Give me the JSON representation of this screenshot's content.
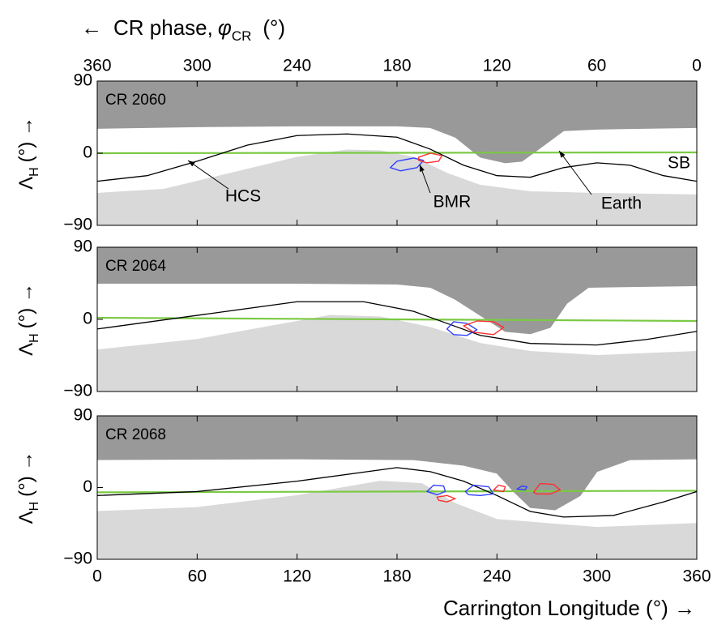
{
  "chart_data": [
    {
      "type": "map",
      "panel_label": "CR 2060",
      "x2label": {
        "arrow": "←",
        "text": "CR phase,",
        "symbol": "φ",
        "sub": "CR",
        "unit": "(°)"
      },
      "x2lim": [
        360,
        0
      ],
      "x2ticks": [
        360,
        300,
        240,
        180,
        120,
        60,
        0
      ],
      "ylabel": {
        "symbol": "Λ",
        "sub": "H",
        "rest": "(°) →"
      },
      "xlim": [
        0,
        360
      ],
      "ylim": [
        -90,
        90
      ],
      "yticks": [
        {
          "value": -90,
          "label": "−90"
        },
        0,
        90
      ],
      "series": [
        {
          "color": "#999999",
          "fill": "above",
          "x": [
            0,
            60,
            120,
            180,
            200,
            215,
            230,
            245,
            255,
            265,
            280,
            300,
            360
          ],
          "values": [
            31,
            33,
            34,
            34,
            32,
            20,
            -5,
            -12,
            -10,
            5,
            28,
            30,
            32
          ]
        },
        {
          "color": "#d9d9d9",
          "fill": "below",
          "x": [
            0,
            40,
            80,
            120,
            150,
            170,
            190,
            210,
            230,
            260,
            300,
            360
          ],
          "values": [
            -50,
            -45,
            -25,
            -5,
            4,
            3,
            -5,
            -25,
            -40,
            -48,
            -50,
            -52
          ]
        },
        {
          "color": "#7ac943",
          "fill": "none",
          "x": [
            0,
            360
          ],
          "values": [
            0,
            1
          ]
        },
        {
          "color": "#000000",
          "fill": "none",
          "x": [
            0,
            30,
            60,
            90,
            120,
            150,
            180,
            200,
            220,
            240,
            260,
            280,
            300,
            320,
            340,
            360
          ],
          "values": [
            -35,
            -28,
            -10,
            10,
            22,
            24,
            20,
            5,
            -15,
            -28,
            -30,
            -18,
            -12,
            -15,
            -28,
            -35
          ]
        }
      ],
      "contours": [
        {
          "color": "#3040ff",
          "x": [
            176,
            180,
            190,
            196,
            192,
            182
          ],
          "values": [
            -18,
            -10,
            -6,
            -9,
            -18,
            -22
          ]
        },
        {
          "color": "#ff3030",
          "x": [
            193,
            200,
            207,
            205,
            198,
            193
          ],
          "values": [
            -5,
            0,
            -3,
            -10,
            -12,
            -9
          ]
        }
      ],
      "annotations": [
        "HCS",
        "BMR",
        "Earth",
        "SB"
      ]
    },
    {
      "type": "map",
      "panel_label": "CR 2064",
      "ylabel": {
        "symbol": "Λ",
        "sub": "H",
        "rest": "(°) →"
      },
      "xlim": [
        0,
        360
      ],
      "ylim": [
        -90,
        90
      ],
      "yticks": [
        {
          "value": -90,
          "label": "−90"
        },
        0,
        90
      ],
      "series": [
        {
          "color": "#999999",
          "fill": "above",
          "x": [
            0,
            120,
            180,
            200,
            215,
            230,
            245,
            260,
            272,
            282,
            295,
            360
          ],
          "values": [
            45,
            45,
            44,
            40,
            25,
            5,
            -15,
            -18,
            -10,
            20,
            40,
            42
          ]
        },
        {
          "color": "#d9d9d9",
          "fill": "below",
          "x": [
            0,
            60,
            100,
            140,
            170,
            200,
            230,
            260,
            300,
            360
          ],
          "values": [
            -38,
            -25,
            -10,
            5,
            3,
            -10,
            -30,
            -40,
            -45,
            -40
          ]
        },
        {
          "color": "#7ac943",
          "fill": "none",
          "x": [
            0,
            360
          ],
          "values": [
            2,
            -2
          ]
        },
        {
          "color": "#000000",
          "fill": "none",
          "x": [
            0,
            60,
            120,
            160,
            190,
            210,
            230,
            260,
            300,
            330,
            360
          ],
          "values": [
            -12,
            5,
            22,
            22,
            10,
            -5,
            -20,
            -30,
            -32,
            -25,
            -15
          ]
        }
      ],
      "contours": [
        {
          "color": "#3040ff",
          "x": [
            210,
            214,
            222,
            228,
            222,
            214
          ],
          "values": [
            -12,
            -3,
            -5,
            -13,
            -20,
            -19
          ]
        },
        {
          "color": "#ff3030",
          "x": [
            220,
            228,
            238,
            244,
            238,
            226
          ],
          "values": [
            -8,
            -2,
            -3,
            -10,
            -19,
            -16
          ]
        }
      ]
    },
    {
      "type": "map",
      "panel_label": "CR 2068",
      "ylabel": {
        "symbol": "Λ",
        "sub": "H",
        "rest": "(°) →"
      },
      "xlabel": "Carrington Longitude (°) →",
      "xlim": [
        0,
        360
      ],
      "xticks": [
        0,
        60,
        120,
        180,
        240,
        300,
        360
      ],
      "ylim": [
        -90,
        90
      ],
      "yticks": [
        {
          "value": -90,
          "label": "−90"
        },
        0,
        90
      ],
      "series": [
        {
          "color": "#999999",
          "fill": "above",
          "x": [
            0,
            120,
            190,
            220,
            240,
            250,
            260,
            275,
            290,
            300,
            320,
            360
          ],
          "values": [
            35,
            36,
            35,
            28,
            18,
            -5,
            -25,
            -28,
            -10,
            20,
            35,
            36
          ]
        },
        {
          "color": "#d9d9d9",
          "fill": "below",
          "x": [
            0,
            60,
            120,
            170,
            195,
            215,
            240,
            270,
            300,
            360
          ],
          "values": [
            -30,
            -25,
            -10,
            8,
            5,
            -20,
            -40,
            -45,
            -50,
            -45
          ]
        },
        {
          "color": "#7ac943",
          "fill": "none",
          "x": [
            0,
            360
          ],
          "values": [
            -6,
            -4
          ]
        },
        {
          "color": "#000000",
          "fill": "none",
          "x": [
            0,
            60,
            120,
            180,
            200,
            220,
            240,
            260,
            280,
            310,
            340,
            360
          ],
          "values": [
            -10,
            -5,
            8,
            25,
            20,
            8,
            -10,
            -30,
            -37,
            -35,
            -18,
            -5
          ]
        }
      ],
      "contours": [
        {
          "color": "#3040ff",
          "x": [
            198,
            202,
            208,
            209,
            204
          ],
          "values": [
            -5,
            3,
            2,
            -5,
            -9
          ]
        },
        {
          "color": "#ff3030",
          "x": [
            204,
            210,
            215,
            210,
            205
          ],
          "values": [
            -12,
            -10,
            -14,
            -18,
            -16
          ]
        },
        {
          "color": "#3040ff",
          "x": [
            221,
            226,
            235,
            238,
            230,
            223
          ],
          "values": [
            -5,
            3,
            1,
            -8,
            -10,
            -9
          ]
        },
        {
          "color": "#ff3030",
          "x": [
            238,
            241,
            245,
            244
          ],
          "values": [
            -3,
            3,
            1,
            -5
          ]
        },
        {
          "color": "#3040ff",
          "x": [
            252,
            255,
            258,
            257
          ],
          "values": [
            -2,
            2,
            1,
            -3
          ]
        },
        {
          "color": "#ff3030",
          "x": [
            262,
            266,
            274,
            278,
            272,
            264
          ],
          "values": [
            -6,
            5,
            4,
            -3,
            -8,
            -8
          ]
        }
      ]
    }
  ]
}
